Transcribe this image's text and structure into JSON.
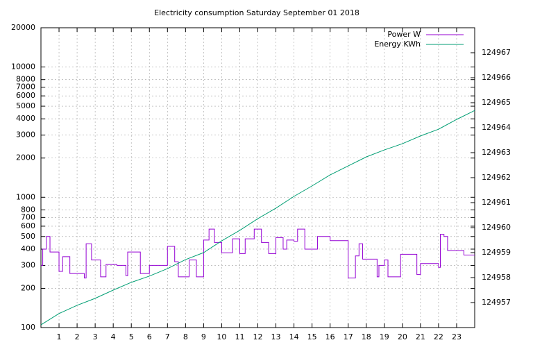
{
  "chart_data": {
    "type": "line",
    "title": "Electricity consumption Saturday September 01 2018",
    "xlim": [
      0,
      24
    ],
    "xticks": [
      1,
      2,
      3,
      4,
      5,
      6,
      7,
      8,
      9,
      10,
      11,
      12,
      13,
      14,
      15,
      16,
      17,
      18,
      19,
      20,
      21,
      22,
      23
    ],
    "ylim": [
      100,
      20000
    ],
    "yscale": "log",
    "yticks": [
      100,
      200,
      300,
      400,
      500,
      600,
      700,
      800,
      1000,
      2000,
      3000,
      4000,
      5000,
      6000,
      7000,
      8000,
      10000,
      20000
    ],
    "y2lim": [
      124956,
      124968
    ],
    "y2ticks": [
      124957,
      124958,
      124959,
      124960,
      124961,
      124962,
      124963,
      124964,
      124965,
      124966,
      124967
    ],
    "grid": true,
    "legend": "top-right",
    "series": [
      {
        "name": "Power W",
        "color": "#9400d3",
        "step": true,
        "x": [
          0,
          0.1,
          0.3,
          0.5,
          1.0,
          1.2,
          1.6,
          2.4,
          2.5,
          2.8,
          3.3,
          3.6,
          4.2,
          4.7,
          4.8,
          5.5,
          6.0,
          7.0,
          7.4,
          7.6,
          8.2,
          8.6,
          9.0,
          9.3,
          9.6,
          10.0,
          10.6,
          11.0,
          11.3,
          11.8,
          12.2,
          12.6,
          13.0,
          13.4,
          13.6,
          14.0,
          14.2,
          14.6,
          15.3,
          16.0,
          17.0,
          17.4,
          17.6,
          17.8,
          18.6,
          18.7,
          19.0,
          19.2,
          19.9,
          20.8,
          21.0,
          22.0,
          22.1,
          22.3,
          22.5,
          23.4
        ],
        "values": [
          300,
          400,
          500,
          380,
          270,
          350,
          260,
          240,
          440,
          330,
          245,
          305,
          300,
          250,
          380,
          260,
          300,
          420,
          320,
          245,
          330,
          245,
          470,
          570,
          450,
          375,
          480,
          370,
          480,
          570,
          450,
          370,
          490,
          400,
          470,
          460,
          570,
          400,
          500,
          465,
          240,
          355,
          440,
          335,
          245,
          300,
          330,
          245,
          365,
          255,
          310,
          290,
          520,
          500,
          390,
          360
        ]
      },
      {
        "name": "Energy KWh",
        "color": "#009e73",
        "axis": "y2",
        "x": [
          0,
          1,
          2,
          3,
          4,
          5,
          6,
          7,
          8,
          9,
          10,
          11,
          12,
          13,
          14,
          15,
          16,
          17,
          18,
          19,
          20,
          21,
          22,
          23,
          24
        ],
        "values": [
          124956.11,
          124956.56,
          124956.89,
          124957.17,
          124957.5,
          124957.81,
          124958.06,
          124958.36,
          124958.72,
          124959.0,
          124959.47,
          124959.89,
          124960.36,
          124960.78,
          124961.25,
          124961.67,
          124962.11,
          124962.47,
          124962.83,
          124963.11,
          124963.36,
          124963.67,
          124963.94,
          124964.33,
          124964.69
        ]
      }
    ]
  }
}
